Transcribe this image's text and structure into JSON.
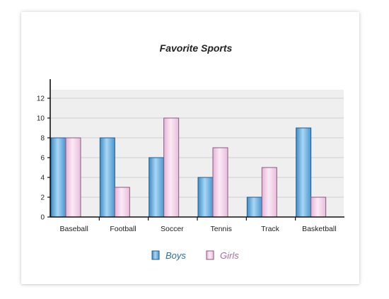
{
  "colors": {
    "boys_fill": "#6fb3e0",
    "boys_stroke": "#1f5d8c",
    "girls_fill": "#f4d2ea",
    "girls_stroke": "#8a5a80",
    "boys_text": "#2a6fa6",
    "girls_text": "#b26aa2",
    "grid": "#cfcfcf",
    "plot_bg": "#efefef",
    "axis": "#111111"
  },
  "chart_data": {
    "type": "bar",
    "title": "Favorite Sports",
    "xlabel": "",
    "ylabel": "",
    "categories": [
      "Baseball",
      "Football",
      "Soccer",
      "Tennis",
      "Track",
      "Basketball"
    ],
    "series": [
      {
        "name": "Boys",
        "values": [
          8,
          8,
          6,
          4,
          2,
          9
        ]
      },
      {
        "name": "Girls",
        "values": [
          8,
          3,
          10,
          7,
          5,
          2
        ]
      }
    ],
    "ylim": [
      0,
      14
    ],
    "yticks": [
      0,
      2,
      4,
      6,
      8,
      10,
      12
    ],
    "grid": true,
    "legend": "bottom-center"
  }
}
